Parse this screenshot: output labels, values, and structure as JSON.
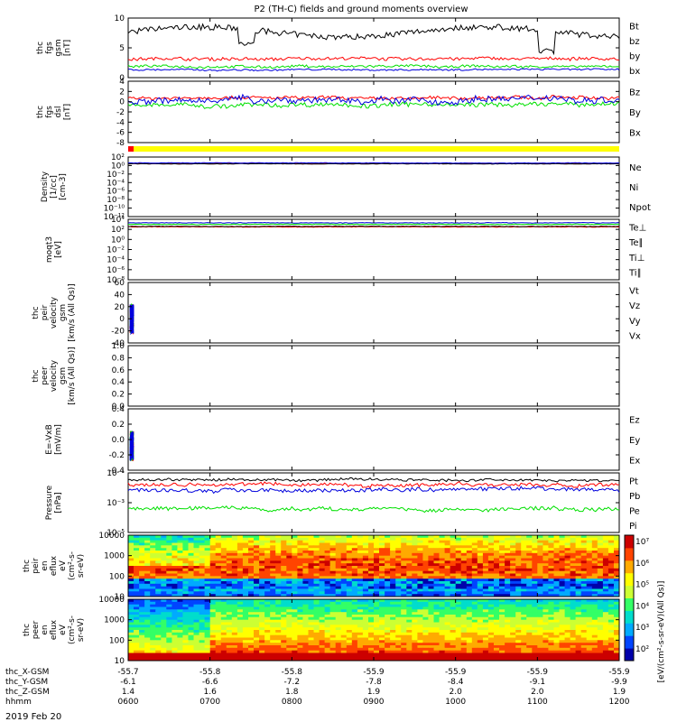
{
  "chart_data": {
    "type": "line",
    "title": "P2 (TH-C) fields and ground moments overview",
    "date": "2019 Feb 20",
    "x_ticks": [
      "0600",
      "0700",
      "0800",
      "0900",
      "1000",
      "1100",
      "1200"
    ],
    "colors": {
      "black": "#000000",
      "red": "#ff0000",
      "green": "#00e000",
      "blue": "#0000dd",
      "yellow": "#ffff00"
    },
    "ephemeris": [
      {
        "label": "thc_X-GSM",
        "values": [
          "-55.7",
          "-55.8",
          "-55.8",
          "-55.9",
          "-55.9",
          "-55.9",
          "-55.9"
        ]
      },
      {
        "label": "thc_Y-GSM",
        "values": [
          "-6.1",
          "-6.6",
          "-7.2",
          "-7.8",
          "-8.4",
          "-9.1",
          "-9.9"
        ]
      },
      {
        "label": "thc_Z-GSM",
        "values": [
          "1.4",
          "1.6",
          "1.8",
          "1.9",
          "2.0",
          "2.0",
          "1.9"
        ]
      },
      {
        "label": "hhmm",
        "values": [
          "0600",
          "0700",
          "0800",
          "0900",
          "1000",
          "1100",
          "1200"
        ]
      }
    ],
    "panels": [
      {
        "id": "fgs_gsm",
        "ylabel": [
          "thc",
          "fgs",
          "gsm",
          "[nT]"
        ],
        "ylim": [
          -2,
          10
        ],
        "yticks": [
          "10",
          "5",
          "0"
        ],
        "series": [
          {
            "name": "Bt",
            "color": "#000000",
            "base": 7,
            "amp": 1.2
          },
          {
            "name": "bz",
            "color": "#ff0000",
            "base": 1.8,
            "amp": 0.6
          },
          {
            "name": "by",
            "color": "#00e000",
            "base": 0.2,
            "amp": 0.5
          },
          {
            "name": "bx",
            "color": "#0000dd",
            "base": -0.4,
            "amp": 0.3
          }
        ]
      },
      {
        "id": "fgs_dsl",
        "ylabel": [
          "thc",
          "fgs",
          "dsl",
          "[nT]"
        ],
        "ylim": [
          -8,
          4
        ],
        "yticks": [
          "4",
          "2",
          "0",
          "-2",
          "-4",
          "-6",
          "-8"
        ],
        "series": [
          {
            "name": "Bz",
            "color": "#ff0000",
            "base": 0.8,
            "amp": 0.6
          },
          {
            "name": "By",
            "color": "#00e000",
            "base": -0.6,
            "amp": 0.8
          },
          {
            "name": "Bx",
            "color": "#0000dd",
            "base": 0.3,
            "amp": 1.2
          }
        ]
      },
      {
        "id": "density",
        "ylabel": [
          "Density",
          "[1/cc]",
          "[cm-3]"
        ],
        "ylim": [
          -12,
          2
        ],
        "yticks": [
          "10²",
          "10⁰",
          "10⁻²",
          "10⁻⁴",
          "10⁻⁶",
          "10⁻⁸",
          "10⁻¹⁰",
          "10⁻¹²"
        ],
        "series": [
          {
            "name": "Ne",
            "color": "#ff0000",
            "base": 0.5,
            "amp": 0.1
          },
          {
            "name": "Ni",
            "color": "#000000",
            "base": 0.4,
            "amp": 0.1
          },
          {
            "name": "Npot",
            "color": "#0000dd",
            "base": 0.6,
            "amp": 0.1
          }
        ]
      },
      {
        "id": "temp",
        "ylabel": [
          "moqt3",
          "[eV]"
        ],
        "ylim": [
          -8,
          4
        ],
        "yticks": [
          "10⁴",
          "10²",
          "10⁰",
          "10⁻²",
          "10⁻⁴",
          "10⁻⁶",
          "10⁻⁸"
        ],
        "series": [
          {
            "name": "Te⊥",
            "color": "#ff0000",
            "base": 2.5,
            "amp": 0.1
          },
          {
            "name": "Te∥",
            "color": "#000000",
            "base": 2.6,
            "amp": 0.1
          },
          {
            "name": "Ti⊥",
            "color": "#0000dd",
            "base": 3.3,
            "amp": 0.1
          },
          {
            "name": "Ti∥",
            "color": "#00e000",
            "base": 3.0,
            "amp": 0.1
          }
        ]
      },
      {
        "id": "peir_velocity",
        "ylabel": [
          "thc",
          "peir",
          "velocity",
          "gsm",
          "[km/s (All Qs)]"
        ],
        "ylim": [
          -40,
          60
        ],
        "yticks": [
          "60",
          "40",
          "20",
          "0",
          "-20",
          "-40"
        ],
        "series": [
          {
            "name": "Vt",
            "color": "#000000"
          },
          {
            "name": "Vz",
            "color": "#ff0000"
          },
          {
            "name": "Vy",
            "color": "#00e000"
          },
          {
            "name": "Vx",
            "color": "#0000dd"
          }
        ]
      },
      {
        "id": "peer_velocity",
        "ylabel": [
          "thc",
          "peer",
          "velocity",
          "gsm",
          "[km/s (All Qs)]"
        ],
        "ylim": [
          0,
          1
        ],
        "yticks": [
          "1.0",
          "0.8",
          "0.6",
          "0.4",
          "0.2",
          "0.0"
        ],
        "series": [
          {
            "name": "Vt",
            "color": "#000000"
          },
          {
            "name": "Vz",
            "color": "#ff0000"
          },
          {
            "name": "Vy",
            "color": "#00e000"
          },
          {
            "name": "Vx",
            "color": "#0000dd"
          }
        ]
      },
      {
        "id": "efield",
        "ylabel": [
          "E=-VxB",
          "[mV/m]"
        ],
        "ylim": [
          -0.4,
          0.4
        ],
        "yticks": [
          "0.4",
          "0.2",
          "0.0",
          "-0.2",
          "-0.4"
        ],
        "series": [
          {
            "name": "Ez",
            "color": "#ff0000"
          },
          {
            "name": "Ey",
            "color": "#00e000"
          },
          {
            "name": "Ex",
            "color": "#0000dd"
          }
        ]
      },
      {
        "id": "pressure",
        "ylabel": [
          "Pressure",
          "[nPa]"
        ],
        "ylim": [
          -5,
          0
        ],
        "yticks": [
          "10⁻¹",
          "10⁻³",
          "10⁻⁵"
        ],
        "series": [
          {
            "name": "Pt",
            "color": "#000000",
            "base": -0.6,
            "amp": 0.2
          },
          {
            "name": "Pb",
            "color": "#ff0000",
            "base": -1.0,
            "amp": 0.3
          },
          {
            "name": "Pe",
            "color": "#00e000",
            "base": -3.0,
            "amp": 0.3
          },
          {
            "name": "Pi",
            "color": "#0000dd",
            "base": -1.4,
            "amp": 0.3
          }
        ]
      }
    ],
    "spectrograms": [
      {
        "id": "peir_en_eflux",
        "ylabel": [
          "thc",
          "peir",
          "en",
          "eflux",
          "eV",
          "(cm²-s-",
          "sr-eV)"
        ],
        "yticks": [
          "10000",
          "1000",
          "100",
          "10"
        ]
      },
      {
        "id": "peer_en_eflux",
        "ylabel": [
          "thc",
          "peer",
          "en",
          "eflux",
          "eV",
          "(cm²-s-",
          "sr-eV)"
        ],
        "yticks": [
          "10000",
          "1000",
          "100",
          "10"
        ]
      }
    ],
    "colorbar": {
      "label": "[eV/(cm²-s-sr-eV)]",
      "ticks": [
        "10⁷",
        "10⁶",
        "10⁵",
        "10⁴",
        "10³",
        "10²"
      ],
      "label2": "[eV/(cm²-s-sr-eV)(All Qs)]"
    }
  }
}
